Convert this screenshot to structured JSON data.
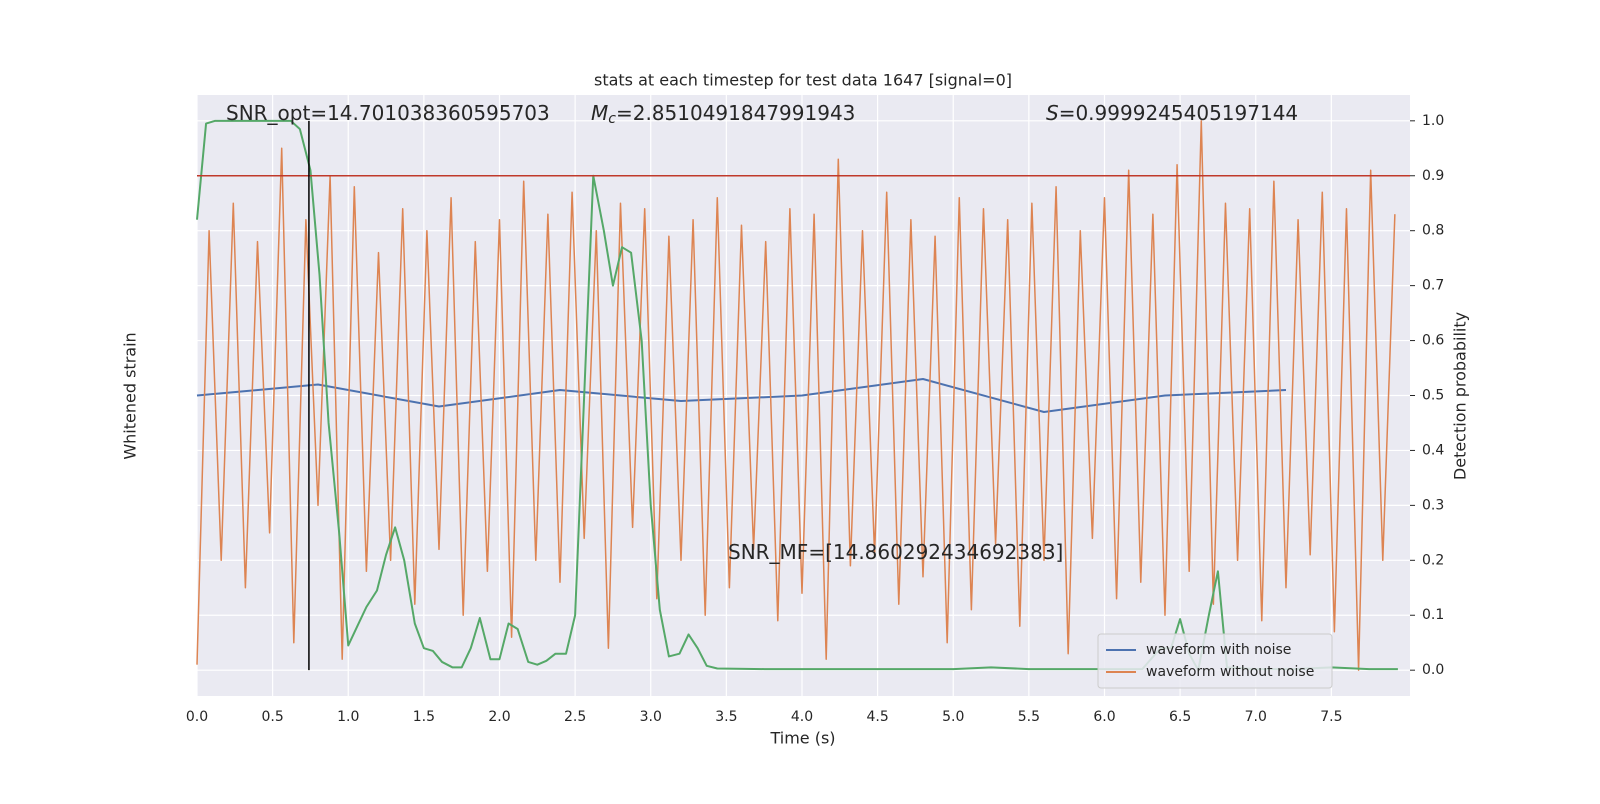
{
  "chart_data": {
    "type": "line",
    "title": "stats at each timestep for test data 1647 [signal=0]",
    "xlabel": "Time (s)",
    "ylabel": "Whitened strain",
    "y2label": "Detection probability",
    "xlim": [
      0,
      8.02
    ],
    "ylim": [
      -0.047,
      1.047
    ],
    "xticks": [
      {
        "value": 0,
        "label": "0.0"
      },
      {
        "value": 0.5,
        "label": "0.5"
      },
      {
        "value": 1,
        "label": "1.0"
      },
      {
        "value": 1.5,
        "label": "1.5"
      },
      {
        "value": 2,
        "label": "2.0"
      },
      {
        "value": 2.5,
        "label": "2.5"
      },
      {
        "value": 3,
        "label": "3.0"
      },
      {
        "value": 3.5,
        "label": "3.5"
      },
      {
        "value": 4,
        "label": "4.0"
      },
      {
        "value": 4.5,
        "label": "4.5"
      },
      {
        "value": 5,
        "label": "5.0"
      },
      {
        "value": 5.5,
        "label": "5.5"
      },
      {
        "value": 6,
        "label": "6.0"
      },
      {
        "value": 6.5,
        "label": "6.5"
      },
      {
        "value": 7,
        "label": "7.0"
      },
      {
        "value": 7.5,
        "label": "7.5"
      }
    ],
    "yticks": [
      {
        "value": 0,
        "label": "0.0"
      },
      0.1,
      0.2,
      0.3,
      0.4,
      0.5,
      0.6,
      0.7,
      0.8,
      0.9,
      {
        "value": 1,
        "label": "1.0"
      }
    ],
    "grid": true,
    "legend": "lower right",
    "annotations": [
      {
        "text": "SNR_opt=14.701038360595703"
      },
      {
        "symbol": "M",
        "subscript": "c",
        "text": "=2.8510491847991943"
      },
      {
        "symbol": "S",
        "text": "=0.9999245405197144"
      },
      {
        "text": "SNR_MF=[14.860292434692383]"
      }
    ],
    "hlines": [
      {
        "y": 0.9,
        "color": "#c0392b"
      }
    ],
    "vlines": [
      {
        "x": 0.74,
        "color": "#000000"
      }
    ],
    "series": [
      {
        "name": "waveform with noise",
        "color": "#4c72b0",
        "x": [
          0,
          0.8,
          1.6,
          2.4,
          3.2,
          4.0,
          4.8,
          5.6,
          6.4,
          7.2
        ],
        "values": [
          0.5,
          0.52,
          0.48,
          0.51,
          0.49,
          0.5,
          0.53,
          0.47,
          0.5,
          0.51
        ]
      },
      {
        "name": "waveform without noise",
        "color": "#dd8452",
        "x": [
          0,
          0.08,
          0.16,
          0.24,
          0.32,
          0.4,
          0.48,
          0.56,
          0.64,
          0.72,
          0.8,
          0.88,
          0.96,
          1.04,
          1.12,
          1.2,
          1.28,
          1.36,
          1.44,
          1.52,
          1.6,
          1.68,
          1.76,
          1.84,
          1.92,
          2,
          2.08,
          2.16,
          2.24,
          2.32,
          2.4,
          2.48,
          2.56,
          2.64,
          2.72,
          2.8,
          2.88,
          2.96,
          3.04,
          3.12,
          3.2,
          3.28,
          3.36,
          3.44,
          3.52,
          3.6,
          3.68,
          3.76,
          3.84,
          3.92,
          4,
          4.08,
          4.16,
          4.24,
          4.32,
          4.4,
          4.48,
          4.56,
          4.64,
          4.72,
          4.8,
          4.88,
          4.96,
          5.04,
          5.12,
          5.2,
          5.28,
          5.36,
          5.44,
          5.52,
          5.6,
          5.68,
          5.76,
          5.84,
          5.92,
          6,
          6.08,
          6.16,
          6.24,
          6.32,
          6.4,
          6.48,
          6.56,
          6.64,
          6.72,
          6.8,
          6.88,
          6.96,
          7.04,
          7.12,
          7.2,
          7.28,
          7.36,
          7.44,
          7.52,
          7.6,
          7.68,
          7.76,
          7.84,
          7.92
        ],
        "values": [
          0.01,
          0.8,
          0.2,
          0.85,
          0.15,
          0.78,
          0.25,
          0.95,
          0.05,
          0.82,
          0.3,
          0.9,
          0.02,
          0.88,
          0.18,
          0.76,
          0.2,
          0.84,
          0.12,
          0.8,
          0.22,
          0.86,
          0.1,
          0.78,
          0.18,
          0.82,
          0.06,
          0.89,
          0.2,
          0.83,
          0.16,
          0.87,
          0.24,
          0.8,
          0.04,
          0.85,
          0.26,
          0.84,
          0.13,
          0.79,
          0.2,
          0.82,
          0.1,
          0.86,
          0.15,
          0.81,
          0.22,
          0.78,
          0.09,
          0.84,
          0.14,
          0.83,
          0.02,
          0.93,
          0.19,
          0.8,
          0.21,
          0.87,
          0.12,
          0.82,
          0.17,
          0.79,
          0.05,
          0.86,
          0.11,
          0.84,
          0.23,
          0.82,
          0.08,
          0.85,
          0.2,
          0.88,
          0.03,
          0.8,
          0.24,
          0.86,
          0.13,
          0.91,
          0.16,
          0.83,
          0.1,
          0.92,
          0.18,
          1.0,
          0.12,
          0.85,
          0.2,
          0.84,
          0.09,
          0.89,
          0.15,
          0.82,
          0.21,
          0.87,
          0.07,
          0.84,
          0.0,
          0.91,
          0.2,
          0.83
        ]
      },
      {
        "color": "#55a868",
        "x": [
          0,
          0.06,
          0.12,
          0.19,
          0.25,
          0.31,
          0.37,
          0.44,
          0.5,
          0.56,
          0.62,
          0.68,
          0.75,
          0.81,
          0.87,
          0.94,
          1.0,
          1.06,
          1.12,
          1.19,
          1.25,
          1.31,
          1.37,
          1.44,
          1.5,
          1.56,
          1.62,
          1.69,
          1.75,
          1.81,
          1.87,
          1.94,
          2.0,
          2.06,
          2.12,
          2.19,
          2.25,
          2.31,
          2.37,
          2.44,
          2.5,
          2.56,
          2.62,
          2.69,
          2.75,
          2.81,
          2.87,
          2.94,
          3.0,
          3.06,
          3.12,
          3.19,
          3.25,
          3.31,
          3.37,
          3.44,
          3.75,
          4.0,
          4.25,
          4.5,
          4.75,
          5.0,
          5.25,
          5.5,
          5.75,
          6.0,
          6.25,
          6.37,
          6.44,
          6.5,
          6.56,
          6.62,
          6.69,
          6.75,
          6.81,
          7.0,
          7.25,
          7.5,
          7.75,
          7.94
        ],
        "values": [
          0.82,
          0.995,
          1.0,
          1.0,
          1.0,
          1.0,
          1.0,
          1.0,
          1.0,
          1.0,
          1.0,
          0.985,
          0.91,
          0.72,
          0.45,
          0.25,
          0.045,
          0.08,
          0.115,
          0.145,
          0.21,
          0.26,
          0.2,
          0.085,
          0.04,
          0.035,
          0.015,
          0.005,
          0.005,
          0.04,
          0.095,
          0.02,
          0.02,
          0.085,
          0.075,
          0.015,
          0.01,
          0.017,
          0.03,
          0.03,
          0.1,
          0.5,
          0.9,
          0.8,
          0.7,
          0.77,
          0.76,
          0.6,
          0.3,
          0.11,
          0.025,
          0.03,
          0.065,
          0.04,
          0.008,
          0.003,
          0.002,
          0.002,
          0.002,
          0.002,
          0.002,
          0.002,
          0.005,
          0.002,
          0.002,
          0.002,
          0.002,
          0.04,
          0.04,
          0.093,
          0.03,
          0.0,
          0.1,
          0.18,
          0.005,
          0.002,
          0.002,
          0.005,
          0.002,
          0.002
        ]
      }
    ]
  }
}
